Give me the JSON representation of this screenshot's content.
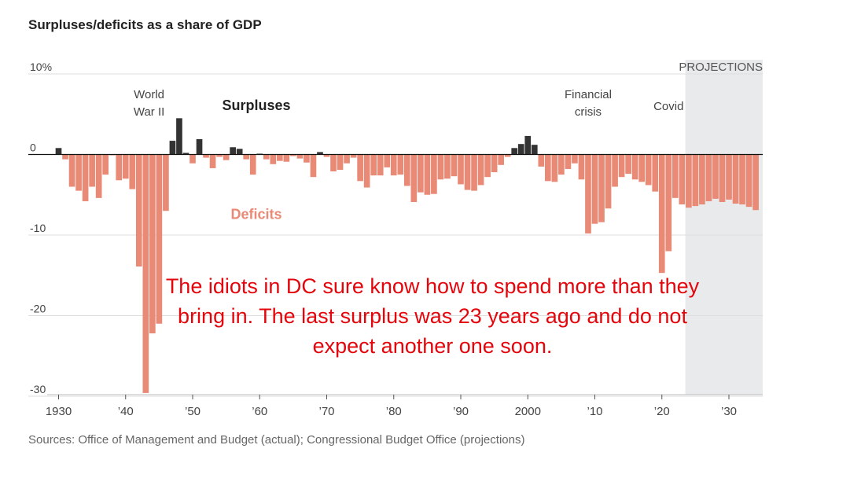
{
  "chart_data": {
    "type": "bar",
    "title": "Surpluses/deficits as a share of GDP",
    "ylim": [
      -30,
      10
    ],
    "y_ticks": [
      {
        "value": 10,
        "label": "10%"
      },
      {
        "value": 0,
        "label": "0"
      },
      {
        "value": -10,
        "label": "-10"
      },
      {
        "value": -20,
        "label": "-20"
      },
      {
        "value": -30,
        "label": "-30"
      }
    ],
    "xlim": [
      1929.5,
      2034.5
    ],
    "x_ticks": [
      {
        "value": 1930,
        "label": "1930"
      },
      {
        "value": 1940,
        "label": "’40"
      },
      {
        "value": 1950,
        "label": "’50"
      },
      {
        "value": 1960,
        "label": "’60"
      },
      {
        "value": 1970,
        "label": "’70"
      },
      {
        "value": 1980,
        "label": "’80"
      },
      {
        "value": 1990,
        "label": "’90"
      },
      {
        "value": 2000,
        "label": "2000"
      },
      {
        "value": 2010,
        "label": "’10"
      },
      {
        "value": 2020,
        "label": "’20"
      },
      {
        "value": 2030,
        "label": "’30"
      }
    ],
    "projection_start": 2024,
    "projection_label": "PROJECTIONS",
    "series": [
      {
        "name": "Actual",
        "x": [
          1930,
          1931,
          1932,
          1933,
          1934,
          1935,
          1936,
          1937,
          1938,
          1939,
          1940,
          1941,
          1942,
          1943,
          1944,
          1945,
          1946,
          1947,
          1948,
          1949,
          1950,
          1951,
          1952,
          1953,
          1954,
          1955,
          1956,
          1957,
          1958,
          1959,
          1960,
          1961,
          1962,
          1963,
          1964,
          1965,
          1966,
          1967,
          1968,
          1969,
          1970,
          1971,
          1972,
          1973,
          1974,
          1975,
          1976,
          1977,
          1978,
          1979,
          1980,
          1981,
          1982,
          1983,
          1984,
          1985,
          1986,
          1987,
          1988,
          1989,
          1990,
          1991,
          1992,
          1993,
          1994,
          1995,
          1996,
          1997,
          1998,
          1999,
          2000,
          2001,
          2002,
          2003,
          2004,
          2005,
          2006,
          2007,
          2008,
          2009,
          2010,
          2011,
          2012,
          2013,
          2014,
          2015,
          2016,
          2017,
          2018,
          2019,
          2020,
          2021,
          2022,
          2023
        ],
        "values": [
          0.8,
          -0.6,
          -4.0,
          -4.5,
          -5.8,
          -4.0,
          -5.4,
          -2.5,
          -0.1,
          -3.2,
          -3.0,
          -4.3,
          -13.9,
          -29.6,
          -22.2,
          -21.0,
          -7.0,
          1.7,
          4.5,
          0.2,
          -1.1,
          1.9,
          -0.4,
          -1.7,
          -0.3,
          -0.7,
          0.9,
          0.7,
          -0.6,
          -2.5,
          0.1,
          -0.6,
          -1.2,
          -0.8,
          -0.9,
          -0.2,
          -0.5,
          -1.0,
          -2.8,
          0.3,
          -0.3,
          -2.1,
          -1.9,
          -1.1,
          -0.4,
          -3.3,
          -4.1,
          -2.6,
          -2.6,
          -1.6,
          -2.6,
          -2.5,
          -3.9,
          -5.9,
          -4.7,
          -5.0,
          -4.9,
          -3.1,
          -3.0,
          -2.7,
          -3.7,
          -4.4,
          -4.5,
          -3.8,
          -2.8,
          -2.2,
          -1.3,
          -0.3,
          0.8,
          1.3,
          2.3,
          1.2,
          -1.5,
          -3.3,
          -3.4,
          -2.5,
          -1.8,
          -1.1,
          -3.1,
          -9.8,
          -8.6,
          -8.4,
          -6.7,
          -4.0,
          -2.8,
          -2.4,
          -3.1,
          -3.4,
          -3.8,
          -4.6,
          -14.7,
          -12.0,
          -5.4,
          -6.2
        ]
      },
      {
        "name": "Projections",
        "x": [
          2024,
          2025,
          2026,
          2027,
          2028,
          2029,
          2030,
          2031,
          2032,
          2033,
          2034
        ],
        "values": [
          -6.6,
          -6.4,
          -6.2,
          -5.8,
          -5.5,
          -5.9,
          -5.6,
          -6.1,
          -6.2,
          -6.5,
          -6.9
        ]
      }
    ],
    "annotations": [
      {
        "text_lines": [
          "World",
          "War II"
        ],
        "x": 1943.5,
        "y": 7.0
      },
      {
        "text_lines": [
          "Surpluses"
        ],
        "x": 1959.5,
        "y": 5.5,
        "bold": true
      },
      {
        "text_lines": [
          "Deficits"
        ],
        "x": 1959.5,
        "y": -8.0,
        "bold": true,
        "color": "#e88a76"
      },
      {
        "text_lines": [
          "Financial",
          "crisis"
        ],
        "x": 2009,
        "y": 7.0
      },
      {
        "text_lines": [
          "Covid"
        ],
        "x": 2021,
        "y": 5.5
      }
    ],
    "colors": {
      "surplus": "#333333",
      "deficit": "#e88a76",
      "projection_band": "#e9eaec",
      "grid": "#dddddd",
      "zero_line": "#111111"
    }
  },
  "overlay_text": "The idiots in DC sure know how to spend more than they bring in. The last surplus was 23 years ago and do not expect another one soon.",
  "source": "Sources: Office of Management and Budget (actual); Congressional Budget Office (projections)"
}
